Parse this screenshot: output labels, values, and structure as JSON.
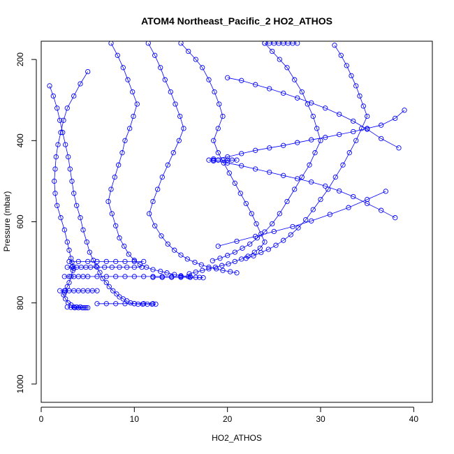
{
  "chart_data": {
    "type": "line",
    "title": "ATOM4 Northeast_Pacific_2 HO2_ATHOS",
    "xlabel": "HO2_ATHOS",
    "ylabel": "Pressure (mbar)",
    "xlim": [
      0,
      42
    ],
    "ylim": [
      1045,
      155
    ],
    "y_reversed": true,
    "x_ticks": [
      0,
      10,
      20,
      30,
      40
    ],
    "y_ticks": [
      200,
      400,
      600,
      800,
      1000
    ],
    "grid": false,
    "legend": "none",
    "series_color": "#0000ff",
    "marker": "open-circle",
    "series": [
      {
        "x": [
          5.0,
          4.2,
          3.5,
          2.8,
          2.4,
          2.1,
          1.8,
          1.6,
          1.5,
          1.4,
          1.5,
          1.7,
          2.1,
          2.5,
          2.8,
          3.0,
          3.2,
          3.3,
          3.4,
          3.5,
          3.4,
          3.2,
          3.0,
          2.8,
          2.6,
          2.5,
          2.4,
          2.6,
          2.9,
          3.2,
          3.5,
          3.8,
          4.2,
          4.6,
          5.0
        ],
        "y": [
          230,
          260,
          290,
          320,
          350,
          380,
          410,
          440,
          470,
          500,
          530,
          560,
          590,
          620,
          650,
          670,
          690,
          700,
          710,
          715,
          720,
          735,
          750,
          760,
          770,
          775,
          780,
          790,
          800,
          805,
          810,
          810,
          810,
          812,
          812
        ]
      },
      {
        "x": [
          0.9,
          1.3,
          1.7,
          2.0,
          2.3,
          2.6,
          2.9,
          3.1,
          3.3,
          3.5,
          3.8,
          4.2,
          4.5,
          4.9,
          5.2,
          5.6,
          5.9,
          6.3,
          6.6,
          7.0,
          7.3,
          7.7,
          8.1,
          8.4,
          8.8,
          9.2,
          9.6,
          10.0,
          10.4,
          10.9,
          11.4,
          11.9,
          12.3
        ],
        "y": [
          265,
          290,
          320,
          350,
          380,
          410,
          440,
          470,
          500,
          530,
          560,
          590,
          620,
          650,
          675,
          695,
          710,
          725,
          740,
          750,
          760,
          770,
          778,
          785,
          790,
          795,
          800,
          802,
          803,
          803,
          803,
          803,
          803
        ]
      },
      {
        "x": [
          7.5,
          8.2,
          8.8,
          9.3,
          9.8,
          10.3,
          9.9,
          9.5,
          9.0,
          8.7,
          8.3,
          7.9,
          7.5,
          7.2,
          7.6,
          8.0,
          8.4,
          8.9,
          9.4,
          10.0,
          10.6,
          11.3,
          12.0,
          12.8,
          13.5,
          14.3,
          15.0,
          15.8,
          16.6,
          17.4
        ],
        "y": [
          160,
          190,
          220,
          250,
          280,
          310,
          340,
          370,
          400,
          430,
          460,
          490,
          520,
          550,
          580,
          610,
          640,
          660,
          680,
          695,
          705,
          712,
          718,
          722,
          726,
          730,
          733,
          735,
          737,
          738
        ]
      },
      {
        "x": [
          11.5,
          12.2,
          12.8,
          13.3,
          13.9,
          14.4,
          14.9,
          15.3,
          14.8,
          14.2,
          13.6,
          13.0,
          12.5,
          12.0,
          11.6,
          12.2,
          12.9,
          13.6,
          14.3,
          15.0,
          15.7,
          16.5,
          17.2,
          18.0,
          18.8,
          19.5,
          20.3,
          21.0
        ],
        "y": [
          160,
          190,
          220,
          250,
          280,
          310,
          340,
          370,
          400,
          430,
          460,
          490,
          520,
          550,
          580,
          610,
          635,
          655,
          670,
          682,
          692,
          700,
          706,
          712,
          716,
          720,
          723,
          726
        ]
      },
      {
        "x": [
          15.0,
          15.8,
          16.6,
          17.3,
          18.0,
          18.6,
          19.1,
          19.5,
          19.0,
          18.5,
          19.0,
          19.6,
          20.2,
          20.8,
          21.4,
          22.0,
          22.6,
          23.1,
          23.6,
          24.0,
          23.5,
          22.9,
          22.2,
          21.5,
          20.8,
          20.1,
          19.4,
          18.7,
          18.0,
          17.3,
          16.6,
          15.9
        ],
        "y": [
          160,
          180,
          200,
          220,
          250,
          280,
          310,
          340,
          370,
          400,
          430,
          455,
          480,
          505,
          530,
          555,
          580,
          605,
          630,
          650,
          665,
          675,
          685,
          692,
          698,
          704,
          708,
          712,
          716,
          720,
          724,
          728
        ]
      },
      {
        "x": [
          24.0,
          24.8,
          25.6,
          26.4,
          27.2,
          28.0,
          28.6,
          29.2,
          29.6,
          30.0,
          29.4,
          28.8,
          28.0,
          27.2,
          26.4,
          25.6,
          24.8,
          24.0,
          23.2,
          22.4,
          21.6,
          20.8,
          20.0,
          19.2,
          18.4
        ],
        "y": [
          160,
          180,
          200,
          220,
          250,
          280,
          310,
          340,
          370,
          400,
          430,
          460,
          490,
          520,
          550,
          580,
          605,
          625,
          640,
          655,
          665,
          675,
          683,
          690,
          696
        ]
      },
      {
        "x": [
          31.5,
          32.2,
          32.8,
          33.3,
          33.8,
          34.2,
          34.6,
          35.0,
          34.4,
          33.8,
          33.1,
          32.4,
          31.6,
          30.8,
          30.0,
          29.2,
          28.4,
          27.6,
          26.8,
          26.0,
          25.2,
          24.4,
          23.6,
          22.8,
          22.0
        ],
        "y": [
          165,
          190,
          215,
          240,
          265,
          290,
          315,
          340,
          370,
          400,
          430,
          460,
          490,
          520,
          545,
          570,
          595,
          615,
          632,
          646,
          658,
          668,
          676,
          684,
          690
        ]
      },
      {
        "x": [
          18.5,
          20.0,
          21.5,
          23.0,
          24.5,
          26.0,
          27.5,
          29.0,
          30.5,
          32.0,
          33.5,
          35.0,
          36.5,
          38.0,
          39.0
        ],
        "y": [
          445,
          440,
          432,
          424,
          418,
          412,
          405,
          398,
          392,
          385,
          378,
          370,
          362,
          345,
          325
        ]
      },
      {
        "x": [
          18.5,
          20.0,
          21.5,
          23.0,
          24.5,
          26.0,
          27.5,
          29.0,
          30.5,
          32.0,
          33.5,
          35.0,
          36.5,
          38.0
        ],
        "y": [
          450,
          455,
          462,
          470,
          478,
          486,
          494,
          502,
          512,
          524,
          538,
          555,
          572,
          590
        ]
      },
      {
        "x": [
          20.0,
          21.5,
          23.0,
          24.5,
          26.0,
          27.5,
          29.0,
          30.5,
          32.0,
          33.5,
          35.0,
          36.5,
          38.4
        ],
        "y": [
          245,
          252,
          262,
          272,
          283,
          295,
          307,
          320,
          335,
          352,
          372,
          395,
          418
        ]
      },
      {
        "x": [
          19.0,
          21.0,
          23.0,
          25.0,
          27.0,
          29.0,
          31.0,
          33.0,
          35.0,
          37.0
        ],
        "y": [
          660,
          648,
          636,
          624,
          612,
          598,
          582,
          565,
          545,
          525
        ]
      },
      {
        "x": [
          2.0,
          2.5,
          3.0,
          3.5,
          4.0,
          4.5,
          5.0,
          5.5,
          6.0
        ],
        "y": [
          770,
          770,
          770,
          770,
          770,
          770,
          770,
          770,
          770
        ]
      },
      {
        "x": [
          2.5,
          3.0,
          3.5,
          4.0,
          4.5,
          5.0,
          6.0,
          7.0,
          8.0,
          9.0,
          10.0,
          11.0,
          12.0,
          13.0,
          14.0,
          15.0,
          16.0
        ],
        "y": [
          735,
          735,
          735,
          735,
          735,
          735,
          735,
          735,
          735,
          735,
          735,
          735,
          735,
          735,
          735,
          735,
          735
        ]
      },
      {
        "x": [
          2.8,
          3.3,
          3.8,
          4.3,
          4.8,
          5.3,
          6.0,
          6.8,
          7.6,
          8.4,
          9.2,
          10.0,
          10.8
        ],
        "y": [
          712,
          712,
          712,
          712,
          712,
          712,
          712,
          712,
          712,
          712,
          712,
          712,
          712
        ]
      },
      {
        "x": [
          3.0,
          4.0,
          5.0,
          6.0,
          7.0,
          8.0,
          9.0,
          10.0,
          11.0
        ],
        "y": [
          698,
          698,
          698,
          698,
          698,
          698,
          698,
          698,
          698
        ]
      },
      {
        "x": [
          2.8,
          3.2,
          3.6,
          4.0,
          4.4,
          4.8
        ],
        "y": [
          810,
          811,
          812,
          812,
          812,
          812
        ]
      },
      {
        "x": [
          18.0,
          18.5,
          19.0,
          19.5,
          20.0,
          20.5,
          21.0
        ],
        "y": [
          448,
          448,
          448,
          448,
          448,
          448,
          448
        ]
      },
      {
        "x": [
          24.0,
          24.5,
          25.0,
          25.5,
          26.0,
          26.5,
          27.0,
          27.5
        ],
        "y": [
          160,
          160,
          160,
          160,
          160,
          160,
          160,
          160
        ]
      },
      {
        "x": [
          6.0,
          7.0,
          8.0,
          9.0,
          10.0,
          11.0,
          12.0
        ],
        "y": [
          802,
          802,
          802,
          802,
          802,
          802,
          802
        ]
      },
      {
        "x": [
          12.0,
          13.0,
          14.0,
          15.0,
          16.0,
          17.0
        ],
        "y": [
          737,
          737,
          737,
          737,
          737,
          737
        ]
      }
    ]
  }
}
